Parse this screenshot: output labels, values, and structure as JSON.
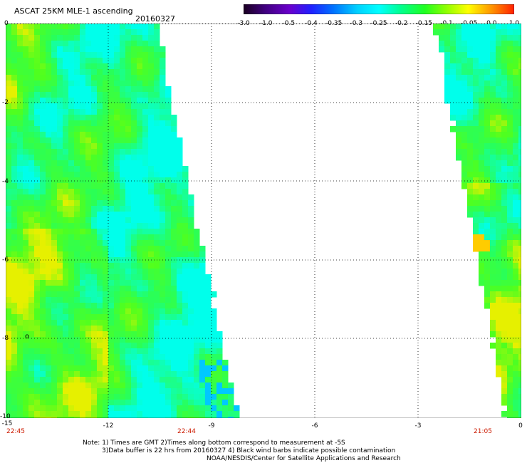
{
  "title": "ASCAT 25KM MLE-1 ascending",
  "date": "20160327",
  "colorbar": {
    "ticks": [
      "-3.0",
      "-1.0",
      "-0.5",
      "-0.4",
      "-0.35",
      "-0.3",
      "-0.25",
      "-0.2",
      "-0.15",
      "-0.1",
      "-0.05",
      "0.0",
      "1.0"
    ],
    "colors": [
      "#2a0030",
      "#4b0082",
      "#6a00cc",
      "#3b28ff",
      "#0066ff",
      "#00b4ff",
      "#00ffff",
      "#00ff80",
      "#30ff00",
      "#aaff00",
      "#ffff00",
      "#ff8000",
      "#ff2000"
    ]
  },
  "y_axis": {
    "labels": [
      "0",
      "-2",
      "-4",
      "-6",
      "-8",
      "-10"
    ]
  },
  "x_axis": {
    "labels": [
      "-15",
      "-12",
      "-9",
      "-6",
      "-3",
      "0"
    ],
    "time_labels": [
      "22:45",
      "22:44",
      "21:05"
    ]
  },
  "notes": {
    "line1": "Note: 1) Times are GMT 2)Times along bottom correspond to measurement at -5S",
    "line2": "3)Data buffer is 22 hrs from 20160327 4) Black wind barbs indicate possible contamination",
    "line3": "NOAA/NESDIS/Center for Satellite Applications and Research"
  },
  "marker": "o",
  "palette": {
    "green": "#30ff40",
    "cyan": "#00ffe0",
    "yellow": "#ccff00",
    "orange": "#ffcc00",
    "blue": "#00b4ff"
  }
}
